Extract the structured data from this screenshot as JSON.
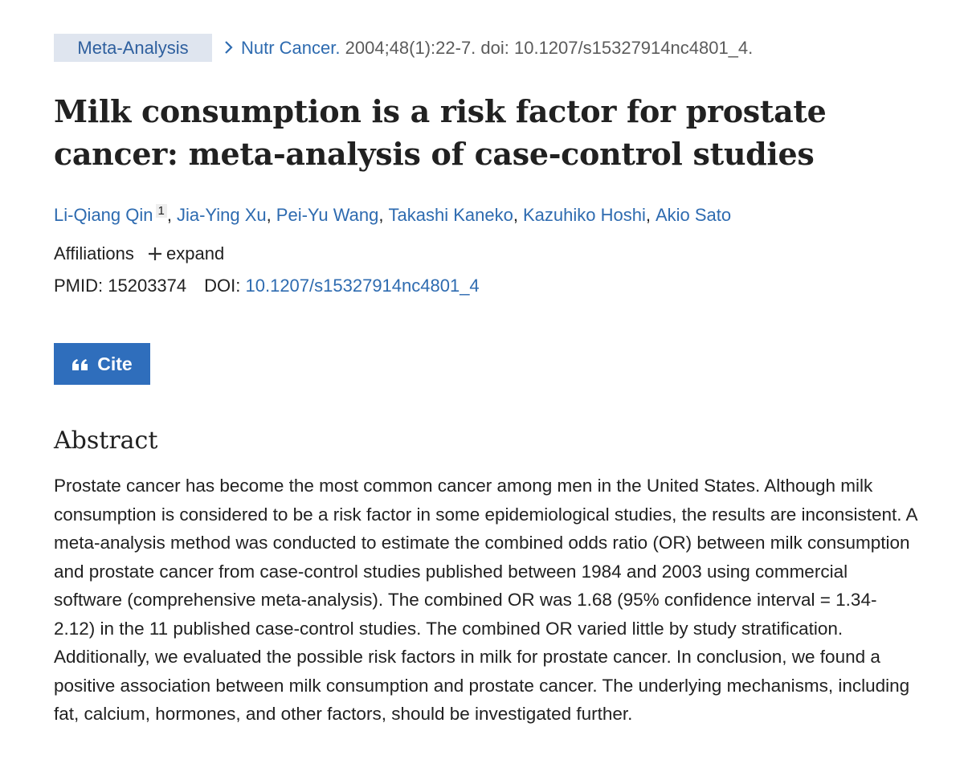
{
  "header": {
    "publication_type": "Meta-Analysis",
    "journal": "Nutr Cancer.",
    "citation": "2004;48(1):22-7. doi: 10.1207/s15327914nc4801_4."
  },
  "title": "Milk consumption is a risk factor for prostate cancer: meta-analysis of case-control studies",
  "authors": {
    "separator": ",",
    "list": [
      {
        "name": "Li-Qiang Qin",
        "affiliation": "1"
      },
      {
        "name": "Jia-Ying Xu"
      },
      {
        "name": "Pei-Yu Wang"
      },
      {
        "name": "Takashi Kaneko"
      },
      {
        "name": "Kazuhiko Hoshi"
      },
      {
        "name": "Akio Sato"
      }
    ]
  },
  "affiliations": {
    "label": "Affiliations",
    "toggle": "expand"
  },
  "identifiers": {
    "pmid_label": "PMID:",
    "pmid": "15203374",
    "doi_label": "DOI:",
    "doi": "10.1207/s15327914nc4801_4"
  },
  "cite_button": "Cite",
  "abstract": {
    "heading": "Abstract",
    "text": "Prostate cancer has become the most common cancer among men in the United States. Although milk consumption is considered to be a risk factor in some epidemiological studies, the results are inconsistent. A meta-analysis method was conducted to estimate the combined odds ratio (OR) between milk consumption and prostate cancer from case-control studies published between 1984 and 2003 using commercial software (comprehensive meta-analysis). The combined OR was 1.68 (95% confidence interval = 1.34-2.12) in the 11 published case-control studies. The combined OR varied little by study stratification. Additionally, we evaluated the possible risk factors in milk for prostate cancer. In conclusion, we found a positive association between milk consumption and prostate cancer. The underlying mechanisms, including fat, calcium, hormones, and other factors, should be investigated further."
  }
}
